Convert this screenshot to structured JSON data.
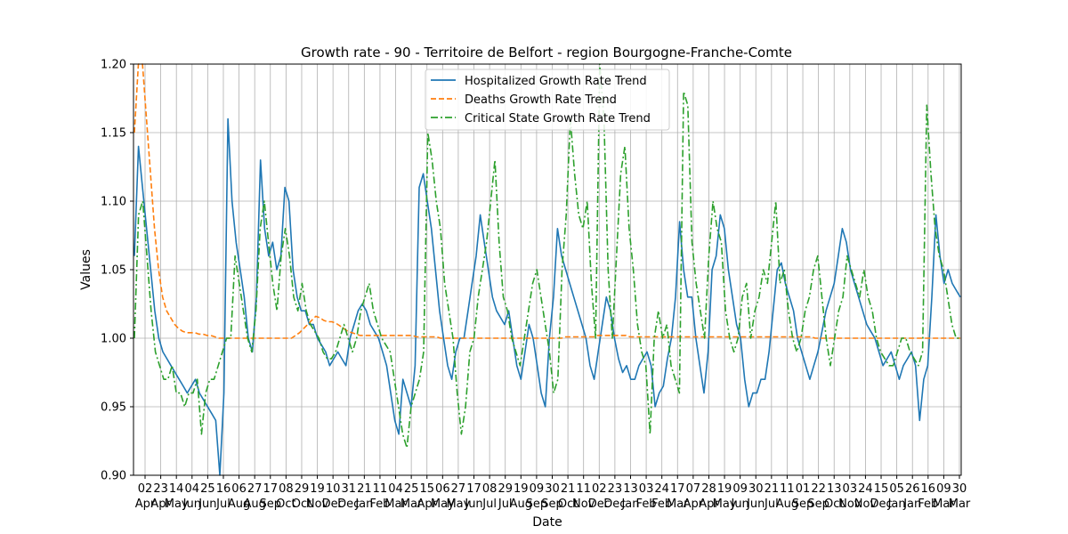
{
  "chart_data": {
    "type": "line",
    "title": "Growth rate - 90 - Territoire de Belfort - region Bourgogne-Franche-Comte",
    "xlabel": "Date",
    "ylabel": "Values",
    "ylim": [
      0.9,
      1.2
    ],
    "yticks": [
      "0.90",
      "0.95",
      "1.00",
      "1.05",
      "1.10",
      "1.15",
      "1.20"
    ],
    "grid": true,
    "legend_position": "top-center",
    "x_ticks": [
      {
        "day": "02",
        "month": "Apr"
      },
      {
        "day": "23",
        "month": "Apr"
      },
      {
        "day": "14",
        "month": "May"
      },
      {
        "day": "04",
        "month": "Jun"
      },
      {
        "day": "25",
        "month": "Jun"
      },
      {
        "day": "16",
        "month": "Jul"
      },
      {
        "day": "06",
        "month": "Aug"
      },
      {
        "day": "27",
        "month": "Aug"
      },
      {
        "day": "17",
        "month": "Sep"
      },
      {
        "day": "08",
        "month": "Oct"
      },
      {
        "day": "29",
        "month": "Oct"
      },
      {
        "day": "19",
        "month": "Nov"
      },
      {
        "day": "10",
        "month": "Dec"
      },
      {
        "day": "31",
        "month": "Dec"
      },
      {
        "day": "21",
        "month": "Jan"
      },
      {
        "day": "11",
        "month": "Feb"
      },
      {
        "day": "04",
        "month": "Mar"
      },
      {
        "day": "25",
        "month": "Mar"
      },
      {
        "day": "15",
        "month": "Apr"
      },
      {
        "day": "06",
        "month": "May"
      },
      {
        "day": "27",
        "month": "May"
      },
      {
        "day": "17",
        "month": "Jun"
      },
      {
        "day": "08",
        "month": "Jul"
      },
      {
        "day": "29",
        "month": "Jul"
      },
      {
        "day": "19",
        "month": "Aug"
      },
      {
        "day": "09",
        "month": "Sep"
      },
      {
        "day": "30",
        "month": "Sep"
      },
      {
        "day": "21",
        "month": "Oct"
      },
      {
        "day": "11",
        "month": "Nov"
      },
      {
        "day": "02",
        "month": "Dec"
      },
      {
        "day": "23",
        "month": "Dec"
      },
      {
        "day": "13",
        "month": "Jan"
      },
      {
        "day": "03",
        "month": "Feb"
      },
      {
        "day": "24",
        "month": "Feb"
      },
      {
        "day": "17",
        "month": "Mar"
      },
      {
        "day": "07",
        "month": "Apr"
      },
      {
        "day": "28",
        "month": "Apr"
      },
      {
        "day": "19",
        "month": "May"
      },
      {
        "day": "09",
        "month": "Jun"
      },
      {
        "day": "30",
        "month": "Jun"
      },
      {
        "day": "21",
        "month": "Jul"
      },
      {
        "day": "11",
        "month": "Aug"
      },
      {
        "day": "01",
        "month": "Sep"
      },
      {
        "day": "22",
        "month": "Sep"
      },
      {
        "day": "13",
        "month": "Oct"
      },
      {
        "day": "03",
        "month": "Nov"
      },
      {
        "day": "24",
        "month": "Nov"
      },
      {
        "day": "15",
        "month": "Dec"
      },
      {
        "day": "05",
        "month": "Jan"
      },
      {
        "day": "26",
        "month": "Jan"
      },
      {
        "day": "16",
        "month": "Feb"
      },
      {
        "day": "09",
        "month": "Mar"
      },
      {
        "day": "30",
        "month": "Mar"
      }
    ],
    "series": [
      {
        "name": "Hospitalized Growth Rate Trend",
        "color": "#1f77b4",
        "style": "solid",
        "values": [
          1.06,
          1.14,
          1.11,
          1.08,
          1.05,
          1.02,
          1.0,
          0.99,
          0.985,
          0.98,
          0.975,
          0.97,
          0.965,
          0.96,
          0.965,
          0.97,
          0.96,
          0.955,
          0.95,
          0.945,
          0.94,
          0.9,
          0.96,
          1.16,
          1.1,
          1.07,
          1.05,
          1.03,
          1.0,
          0.99,
          1.03,
          1.13,
          1.08,
          1.06,
          1.07,
          1.05,
          1.06,
          1.11,
          1.1,
          1.05,
          1.03,
          1.02,
          1.02,
          1.01,
          1.01,
          1.0,
          0.995,
          0.99,
          0.98,
          0.985,
          0.99,
          0.985,
          0.98,
          1.0,
          1.01,
          1.02,
          1.025,
          1.02,
          1.01,
          1.005,
          1.0,
          0.99,
          0.98,
          0.96,
          0.94,
          0.93,
          0.97,
          0.96,
          0.95,
          0.98,
          1.11,
          1.12,
          1.1,
          1.08,
          1.05,
          1.02,
          1.0,
          0.98,
          0.97,
          0.99,
          1.0,
          1.0,
          1.02,
          1.04,
          1.06,
          1.09,
          1.07,
          1.05,
          1.03,
          1.02,
          1.015,
          1.01,
          1.02,
          1.0,
          0.98,
          0.97,
          0.99,
          1.01,
          1.0,
          0.98,
          0.96,
          0.95,
          1.0,
          1.03,
          1.08,
          1.06,
          1.05,
          1.04,
          1.03,
          1.02,
          1.01,
          1.0,
          0.98,
          0.97,
          0.99,
          1.01,
          1.03,
          1.02,
          1.0,
          0.985,
          0.975,
          0.98,
          0.97,
          0.97,
          0.98,
          0.985,
          0.99,
          0.98,
          0.95,
          0.96,
          0.965,
          0.985,
          1.0,
          1.03,
          1.085,
          1.05,
          1.03,
          1.03,
          1.0,
          0.98,
          0.96,
          0.99,
          1.05,
          1.06,
          1.09,
          1.08,
          1.05,
          1.03,
          1.01,
          1.0,
          0.97,
          0.95,
          0.96,
          0.96,
          0.97,
          0.97,
          0.99,
          1.02,
          1.05,
          1.055,
          1.04,
          1.03,
          1.02,
          1.0,
          0.99,
          0.98,
          0.97,
          0.98,
          0.99,
          1.005,
          1.02,
          1.03,
          1.04,
          1.06,
          1.08,
          1.07,
          1.05,
          1.04,
          1.03,
          1.02,
          1.01,
          1.005,
          1.0,
          0.99,
          0.98,
          0.985,
          0.99,
          0.98,
          0.97,
          0.98,
          0.985,
          0.99,
          0.98,
          0.94,
          0.97,
          0.98,
          1.03,
          1.09,
          1.06,
          1.04,
          1.05,
          1.04,
          1.035,
          1.03
        ]
      },
      {
        "name": "Deaths Growth Rate Trend",
        "color": "#ff7f0e",
        "style": "dashed",
        "values": [
          1.15,
          1.2,
          1.2,
          1.16,
          1.12,
          1.08,
          1.05,
          1.03,
          1.02,
          1.015,
          1.01,
          1.007,
          1.005,
          1.004,
          1.004,
          1.004,
          1.003,
          1.003,
          1.002,
          1.002,
          1.001,
          1.0,
          1.0,
          1.0,
          1.0,
          1.0,
          1.0,
          1.0,
          1.0,
          1.0,
          1.0,
          1.0,
          1.0,
          1.0,
          1.0,
          1.0,
          1.0,
          1.0,
          1.0,
          1.0,
          1.002,
          1.004,
          1.007,
          1.01,
          1.013,
          1.016,
          1.015,
          1.013,
          1.012,
          1.012,
          1.011,
          1.009,
          1.007,
          1.005,
          1.004,
          1.003,
          1.002,
          1.002,
          1.002,
          1.002,
          1.002,
          1.002,
          1.002,
          1.002,
          1.002,
          1.002,
          1.002,
          1.002,
          1.002,
          1.002,
          1.001,
          1.001,
          1.001,
          1.001,
          1.001,
          1.001,
          1.0,
          1.0,
          1.0,
          1.0,
          1.0,
          1.0,
          1.0,
          1.0,
          1.0,
          1.0,
          1.0,
          1.0,
          1.0,
          1.0,
          1.0,
          1.0,
          1.0,
          1.0,
          1.0,
          1.0,
          1.0,
          1.0,
          1.0,
          1.0,
          1.0,
          1.0,
          1.0,
          1.0,
          1.0,
          1.0,
          1.0,
          1.001,
          1.001,
          1.001,
          1.001,
          1.001,
          1.001,
          1.001,
          1.001,
          1.002,
          1.002,
          1.002,
          1.002,
          1.002,
          1.002,
          1.002,
          1.002,
          1.001,
          1.001,
          1.001,
          1.001,
          1.001,
          1.001,
          1.001,
          1.001,
          1.001,
          1.001,
          1.001,
          1.001,
          1.001,
          1.001,
          1.001,
          1.001,
          1.001,
          1.001,
          1.001,
          1.001,
          1.001,
          1.001,
          1.001,
          1.001,
          1.001,
          1.001,
          1.001,
          1.001,
          1.001,
          1.001,
          1.001,
          1.001,
          1.001,
          1.001,
          1.001,
          1.001,
          1.001,
          1.001,
          1.001,
          1.001,
          1.001,
          1.001,
          1.001,
          1.001,
          1.001,
          1.001,
          1.0,
          1.0,
          1.0,
          1.0,
          1.0,
          1.0,
          1.0,
          1.0,
          1.0,
          1.0,
          1.0,
          1.0,
          1.0,
          1.0,
          1.0,
          1.0,
          1.0,
          1.0,
          1.0,
          1.0,
          1.0,
          1.0,
          1.0,
          1.0,
          1.0,
          1.0,
          1.0,
          1.0,
          1.0,
          1.0,
          1.0,
          1.0,
          1.0,
          1.0,
          1.0,
          1.0,
          1.0
        ]
      },
      {
        "name": "Critical State Growth Rate Trend",
        "color": "#2ca02c",
        "style": "dashdot",
        "values": [
          1.0,
          1.09,
          1.1,
          1.06,
          1.02,
          0.99,
          0.98,
          0.97,
          0.97,
          0.98,
          0.96,
          0.96,
          0.95,
          0.96,
          0.96,
          0.97,
          0.93,
          0.96,
          0.97,
          0.97,
          0.98,
          0.99,
          1.0,
          1.0,
          1.06,
          1.04,
          1.02,
          1.0,
          0.99,
          1.02,
          1.08,
          1.1,
          1.07,
          1.04,
          1.02,
          1.06,
          1.08,
          1.06,
          1.03,
          1.02,
          1.04,
          1.02,
          1.01,
          1.005,
          1.0,
          0.99,
          0.985,
          0.985,
          0.99,
          1.0,
          1.01,
          1.0,
          0.99,
          1.0,
          1.02,
          1.03,
          1.04,
          1.02,
          1.01,
          1.0,
          0.995,
          0.99,
          0.97,
          0.95,
          0.93,
          0.92,
          0.95,
          0.96,
          0.97,
          0.99,
          1.15,
          1.13,
          1.1,
          1.08,
          1.04,
          1.02,
          1.0,
          0.96,
          0.93,
          0.95,
          0.99,
          1.0,
          1.03,
          1.05,
          1.07,
          1.1,
          1.13,
          1.07,
          1.03,
          1.02,
          1.0,
          0.99,
          0.98,
          1.0,
          1.02,
          1.04,
          1.05,
          1.03,
          1.01,
          0.99,
          0.96,
          0.97,
          1.05,
          1.09,
          1.16,
          1.12,
          1.09,
          1.08,
          1.1,
          1.04,
          1.0,
          1.2,
          1.16,
          1.05,
          1.0,
          1.06,
          1.12,
          1.14,
          1.08,
          1.05,
          1.01,
          0.99,
          0.98,
          0.93,
          1.0,
          1.02,
          1.0,
          1.01,
          0.98,
          0.97,
          0.96,
          1.18,
          1.17,
          1.07,
          1.04,
          1.02,
          1.0,
          1.06,
          1.1,
          1.08,
          1.07,
          1.02,
          1.0,
          0.99,
          1.0,
          1.03,
          1.04,
          1.0,
          1.02,
          1.03,
          1.05,
          1.04,
          1.07,
          1.1,
          1.04,
          1.05,
          1.02,
          1.0,
          0.99,
          1.0,
          1.02,
          1.03,
          1.05,
          1.06,
          1.03,
          1.0,
          0.98,
          1.0,
          1.02,
          1.03,
          1.06,
          1.05,
          1.04,
          1.03,
          1.05,
          1.03,
          1.02,
          1.0,
          0.99,
          0.985,
          0.98,
          0.98,
          0.99,
          1.0,
          1.0,
          0.99,
          0.985,
          0.98,
          0.99,
          1.17,
          1.12,
          1.08,
          1.06,
          1.05,
          1.03,
          1.01,
          1.0,
          1.0
        ]
      }
    ]
  }
}
